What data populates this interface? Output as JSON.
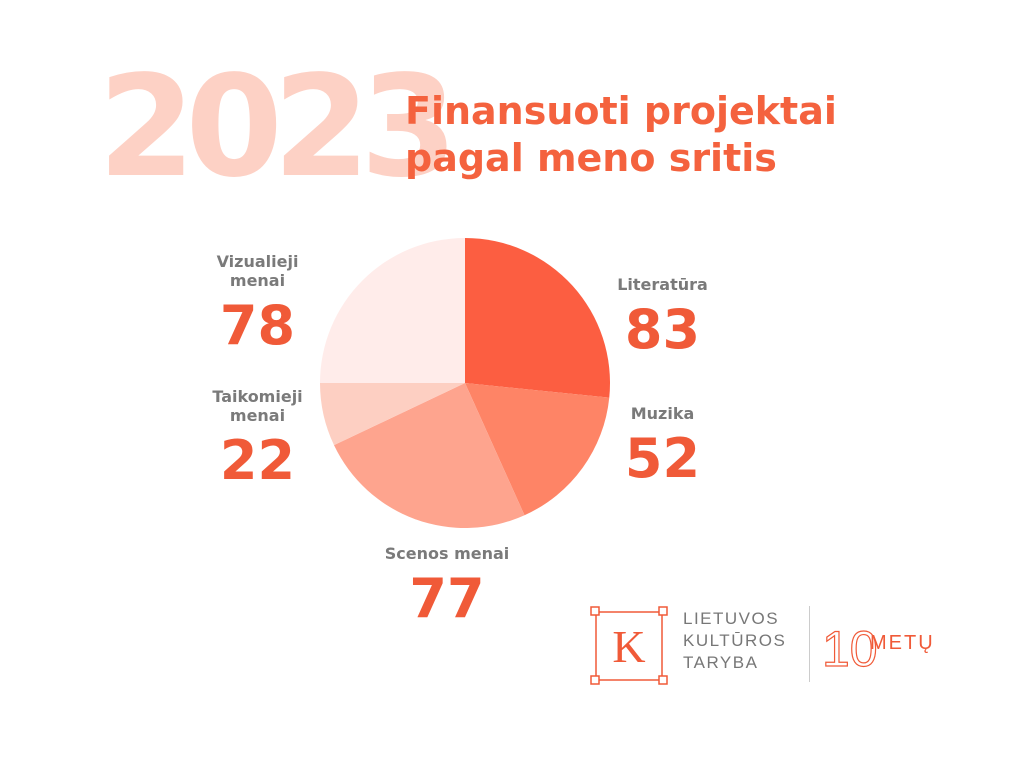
{
  "header": {
    "year": "2023",
    "title_line1": "Finansuoti projektai",
    "title_line2": "pagal meno sritis"
  },
  "chart_data": {
    "type": "pie",
    "categories": [
      "Literatūra",
      "Muzika",
      "Scenos menai",
      "Taikomieji menai",
      "Vizualieji menai"
    ],
    "values": [
      83,
      52,
      77,
      22,
      78
    ],
    "colors": [
      "#fc5e41",
      "#fe8466",
      "#fea48e",
      "#fdcfc2",
      "#ffecea"
    ],
    "start_angle_deg": 0,
    "direction": "clockwise"
  },
  "labels": [
    {
      "label": "Literatūra",
      "value": "83"
    },
    {
      "label": "Muzika",
      "value": "52"
    },
    {
      "label": "Scenos menai",
      "value": "77"
    },
    {
      "label": "Taikomieji\nmenai",
      "value": "22"
    },
    {
      "label": "Vizualieji\nmenai",
      "value": "78"
    }
  ],
  "logo": {
    "letter": "K",
    "line1": "LIETUVOS",
    "line2": "KULTŪROS",
    "line3": "TARYBA",
    "badge_number": "10",
    "badge_text": "METŲ"
  }
}
